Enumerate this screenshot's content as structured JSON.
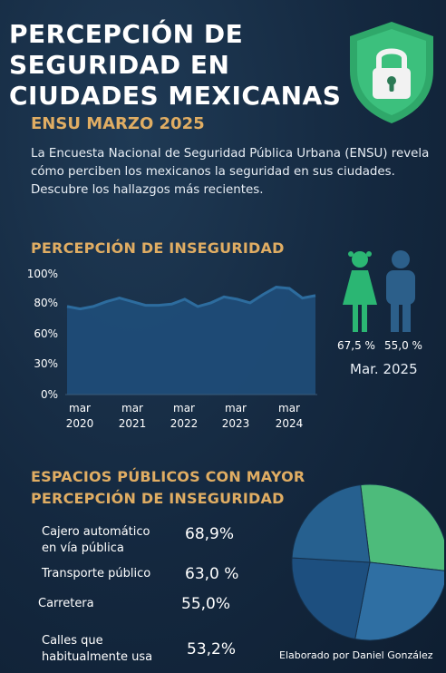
{
  "header": {
    "title_lines": [
      "PERCEPCIÓN DE",
      "SEGURIDAD EN",
      "CIUDADES MEXICANAS"
    ],
    "subtitle": "ENSU MARZO 2025",
    "intro": "La Encuesta Nacional de Seguridad Pública Urbana (ENSU) revela cómo perciben los mexicanos la seguridad en sus ciudades. Descubre los hallazgos más recientes.",
    "shield_icon": "shield-lock-icon"
  },
  "colors": {
    "accent": "#e0ad63",
    "female": "#2bb673",
    "male": "#2c5f8a",
    "line_fill": "#1f4e7a",
    "pie_green": "#4dbb7b",
    "pie_blue": "#2f6fa3",
    "pie_dark": "#1d4f7f"
  },
  "line_section": {
    "title": "PERCEPCIÓN DE INSEGURIDAD",
    "gender": {
      "female_icon": "woman-icon",
      "male_icon": "man-icon",
      "female_value": "67,5 %",
      "male_value": "55,0 %",
      "date": "Mar. 2025"
    }
  },
  "places_section": {
    "title_lines": [
      "ESPACIOS PÚBLICOS CON MAYOR",
      "PERCEPCIÓN DE INSEGURIDAD"
    ],
    "items": [
      {
        "label_lines": [
          "Cajero automático",
          "en vía pública"
        ],
        "value": "68,9%"
      },
      {
        "label_lines": [
          "Transporte público"
        ],
        "value": "63,0 %"
      },
      {
        "label_lines": [
          "Carretera"
        ],
        "value": "55,0%"
      },
      {
        "label_lines": [
          "Calles que",
          "habitualmente usa"
        ],
        "value": "53,2%"
      }
    ]
  },
  "footer": "Elaborado por Daniel González",
  "chart_data": [
    {
      "type": "area",
      "title": "PERCEPCIÓN DE INSEGURIDAD",
      "ylim": [
        0,
        100
      ],
      "y_ticks": [
        "100%",
        "80%",
        "60%",
        "30%",
        "0%"
      ],
      "x_ticks": [
        [
          "mar",
          "2020"
        ],
        [
          "mar",
          "2021"
        ],
        [
          "mar",
          "2022"
        ],
        [
          "mar",
          "2023"
        ],
        [
          "mar",
          "2024"
        ]
      ],
      "x": [
        "mar 2020",
        "sep 2020",
        "dic 2020",
        "mar 2021",
        "jun 2021",
        "sep 2021",
        "dic 2021",
        "mar 2022",
        "jun 2022",
        "sep 2022",
        "dic 2022",
        "mar 2023",
        "jun 2023",
        "sep 2023",
        "dic 2023",
        "mar 2024",
        "jun 2024",
        "sep 2024",
        "dic 2024",
        "mar 2025"
      ],
      "values": [
        73,
        71,
        73,
        77,
        80,
        77,
        74,
        74,
        75,
        79,
        73,
        76,
        81,
        79,
        76,
        83,
        89,
        88,
        80,
        82
      ],
      "grid": false
    },
    {
      "type": "pie",
      "labels": [
        "Cajero automático en vía pública",
        "Transporte público",
        "Carretera",
        "Calles que habitualmente usa"
      ],
      "values": [
        68.9,
        63.0,
        55.0,
        53.2
      ],
      "colors": [
        "#4dbb7b",
        "#2f6fa3",
        "#1d4f7f",
        "#26608f"
      ]
    }
  ]
}
